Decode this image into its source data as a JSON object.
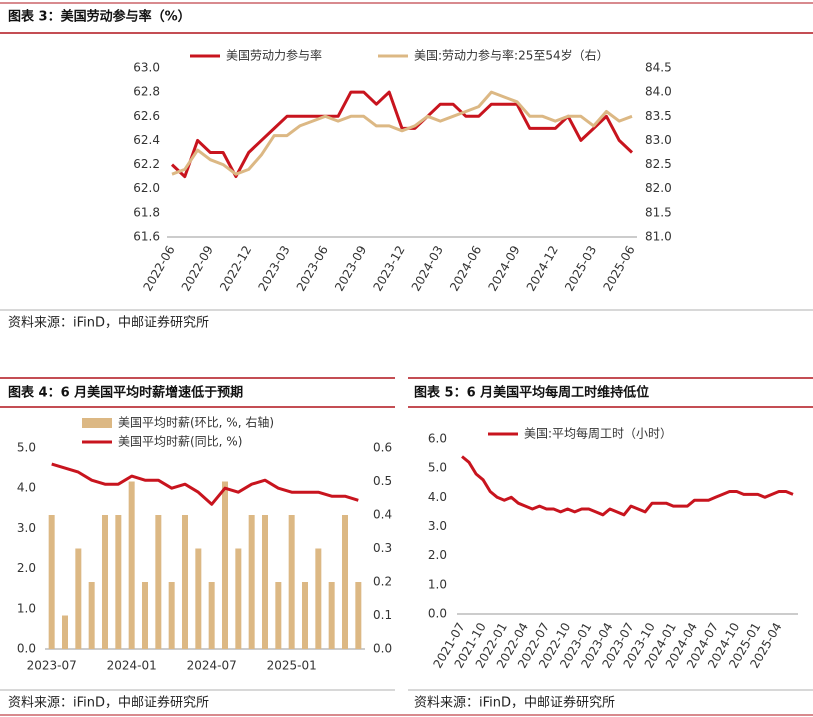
{
  "chart_data": [
    {
      "type": "line",
      "title": "图表 3：美国劳动参与率（%）",
      "source": "资料来源：iFinD，中邮证券研究所",
      "categories": [
        "2022-06",
        null,
        null,
        "2022-09",
        null,
        null,
        "2022-12",
        null,
        null,
        "2023-03",
        null,
        null,
        "2023-06",
        null,
        null,
        "2023-09",
        null,
        null,
        "2023-12",
        null,
        null,
        "2024-03",
        null,
        null,
        "2024-06",
        null,
        null,
        "2024-09",
        null,
        null,
        "2024-12",
        null,
        null,
        "2025-03",
        null,
        null,
        "2025-06"
      ],
      "series": [
        {
          "name": "美国劳动力参与率",
          "color": "#c8141e",
          "values": [
            62.2,
            62.1,
            62.4,
            62.3,
            62.3,
            62.1,
            62.3,
            62.4,
            62.5,
            62.6,
            62.6,
            62.6,
            62.6,
            62.6,
            62.8,
            62.8,
            62.7,
            62.8,
            62.5,
            62.5,
            62.6,
            62.7,
            62.7,
            62.6,
            62.6,
            62.7,
            62.7,
            62.7,
            62.5,
            62.5,
            62.5,
            62.6,
            62.4,
            62.5,
            62.6,
            62.4,
            62.3
          ]
        },
        {
          "name": "美国:劳动力参与率:25至54岁（右）",
          "color": "#dcb884",
          "axis": "y2",
          "values": [
            82.3,
            82.4,
            82.8,
            82.6,
            82.5,
            82.3,
            82.4,
            82.7,
            83.1,
            83.1,
            83.3,
            83.4,
            83.5,
            83.4,
            83.5,
            83.5,
            83.3,
            83.3,
            83.2,
            83.3,
            83.5,
            83.4,
            83.5,
            83.6,
            83.7,
            84.0,
            83.9,
            83.8,
            83.5,
            83.5,
            83.4,
            83.5,
            83.5,
            83.3,
            83.6,
            83.4,
            83.5
          ]
        }
      ],
      "ylim": [
        61.6,
        63.0
      ],
      "yticks": [
        61.6,
        61.8,
        {
          "value": 62.0,
          "label": "62.0"
        },
        62.2,
        62.4,
        62.6,
        62.8,
        {
          "value": 63.0,
          "label": "63.0"
        }
      ],
      "y2lim": [
        81.0,
        84.5
      ],
      "y2ticks": [
        {
          "value": 81.0,
          "label": "81.0"
        },
        81.5,
        {
          "value": 82.0,
          "label": "82.0"
        },
        82.5,
        {
          "value": 83.0,
          "label": "83.0"
        },
        83.5,
        {
          "value": 84.0,
          "label": "84.0"
        },
        84.5
      ]
    },
    {
      "type": "combo",
      "title": "图表 4：6 月美国平均时薪增速低于预期",
      "source": "资料来源：iFinD，中邮证券研究所",
      "categories": [
        "2023-07",
        null,
        null,
        null,
        null,
        null,
        "2024-01",
        null,
        null,
        null,
        null,
        null,
        "2024-07",
        null,
        null,
        null,
        null,
        null,
        "2025-01",
        null,
        null,
        null,
        null,
        null
      ],
      "series": [
        {
          "name": "美国平均时薪(环比, %, 右轴)",
          "type": "bar",
          "color": "#dcb884",
          "axis": "y2",
          "values": [
            0.4,
            0.1,
            0.3,
            0.2,
            0.4,
            0.4,
            0.5,
            0.2,
            0.4,
            0.2,
            0.4,
            0.3,
            0.2,
            0.5,
            0.3,
            0.4,
            0.4,
            0.2,
            0.4,
            0.2,
            0.3,
            0.2,
            0.4,
            0.2
          ]
        },
        {
          "name": "美国平均时薪(同比, %)",
          "type": "line",
          "color": "#c8141e",
          "values": [
            4.6,
            4.5,
            4.4,
            4.2,
            4.1,
            4.1,
            4.3,
            4.2,
            4.2,
            4.0,
            4.1,
            3.9,
            3.6,
            4.0,
            3.9,
            4.1,
            4.2,
            4.0,
            3.9,
            3.9,
            3.9,
            3.8,
            3.8,
            3.7
          ]
        }
      ],
      "ylim": [
        0.0,
        5.0
      ],
      "yticks": [
        {
          "value": 0.0,
          "label": "0.0"
        },
        {
          "value": 1.0,
          "label": "1.0"
        },
        {
          "value": 2.0,
          "label": "2.0"
        },
        {
          "value": 3.0,
          "label": "3.0"
        },
        {
          "value": 4.0,
          "label": "4.0"
        },
        {
          "value": 5.0,
          "label": "5.0"
        }
      ],
      "y2lim": [
        0.0,
        0.6
      ],
      "y2ticks": [
        {
          "value": 0.0,
          "label": "0.0"
        },
        0.1,
        0.2,
        0.3,
        0.4,
        0.5,
        0.6
      ]
    },
    {
      "type": "line",
      "title": "图表 5：6 月美国平均每周工时维持低位",
      "source": "资料来源：iFinD，中邮证券研究所",
      "categories": [
        "2021-07",
        null,
        null,
        "2021-10",
        null,
        null,
        "2022-01",
        null,
        null,
        "2022-04",
        null,
        null,
        "2022-07",
        null,
        null,
        "2022-10",
        null,
        null,
        "2023-01",
        null,
        null,
        "2023-04",
        null,
        null,
        "2023-07",
        null,
        null,
        "2023-10",
        null,
        null,
        "2024-01",
        null,
        null,
        "2024-04",
        null,
        null,
        "2024-07",
        null,
        null,
        "2024-10",
        null,
        null,
        "2025-01",
        null,
        null,
        "2025-04",
        null,
        null
      ],
      "series": [
        {
          "name": "美国:平均每周工时（小时）",
          "color": "#c8141e",
          "values": [
            5.4,
            5.2,
            4.8,
            4.6,
            4.2,
            4.0,
            3.9,
            4.0,
            3.8,
            3.7,
            3.6,
            3.7,
            3.6,
            3.6,
            3.5,
            3.6,
            3.5,
            3.6,
            3.6,
            3.5,
            3.4,
            3.6,
            3.5,
            3.4,
            3.7,
            3.6,
            3.5,
            3.8,
            3.8,
            3.8,
            3.7,
            3.7,
            3.7,
            3.9,
            3.9,
            3.9,
            4.0,
            4.1,
            4.2,
            4.2,
            4.1,
            4.1,
            4.1,
            4.0,
            4.1,
            4.2,
            4.2,
            4.1
          ]
        }
      ],
      "ylim": [
        0.0,
        6.0
      ],
      "yticks": [
        {
          "value": 0.0,
          "label": "0.0"
        },
        {
          "value": 1.0,
          "label": "1.0"
        },
        {
          "value": 2.0,
          "label": "2.0"
        },
        {
          "value": 3.0,
          "label": "3.0"
        },
        {
          "value": 4.0,
          "label": "4.0"
        },
        {
          "value": 5.0,
          "label": "5.0"
        },
        {
          "value": 6.0,
          "label": "6.0"
        }
      ]
    }
  ]
}
